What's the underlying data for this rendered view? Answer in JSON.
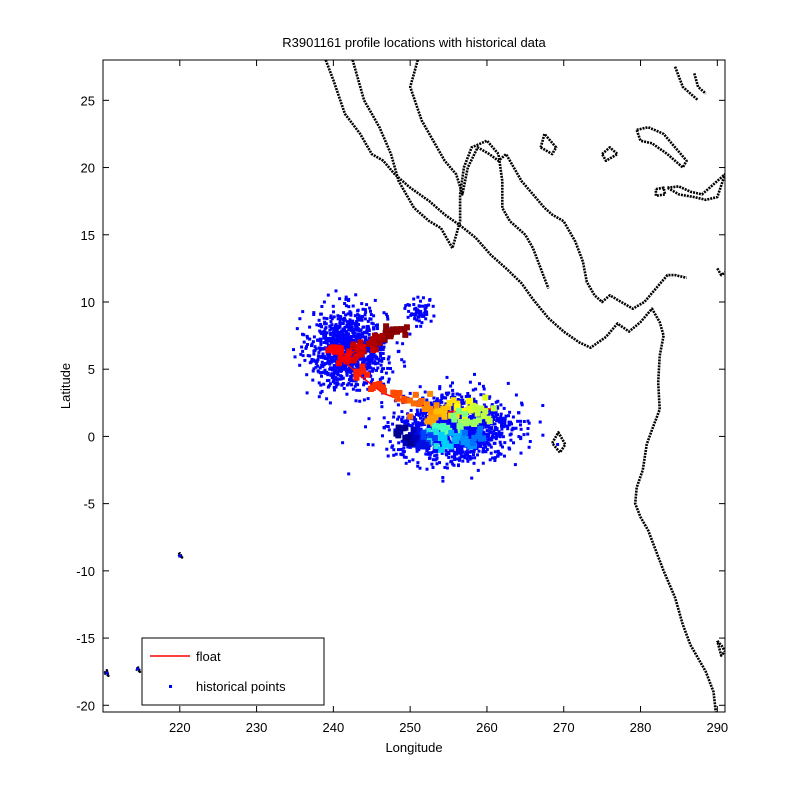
{
  "chart_data": {
    "type": "scatter",
    "title": "R3901161 profile locations with historical data",
    "xlabel": "Longitude",
    "ylabel": "Latitude",
    "xlim": [
      210,
      291
    ],
    "ylim": [
      -20.5,
      28
    ],
    "xticks": [
      220,
      230,
      240,
      250,
      260,
      270,
      280,
      290
    ],
    "yticks": [
      -20,
      -15,
      -10,
      -5,
      0,
      5,
      10,
      15,
      20,
      25
    ],
    "grid": false,
    "legend": {
      "placement": "bottom-left",
      "entries": [
        {
          "name": "float",
          "color": "#ff0000",
          "marker": "line"
        },
        {
          "name": "historical points",
          "color": "#0000ff",
          "marker": "dot"
        }
      ]
    },
    "series": [
      {
        "name": "historical points",
        "color": "#0000ff",
        "clusters": [
          {
            "center": [
              242,
              6.5
            ],
            "spread": [
              4.5,
              2.6
            ],
            "count": 1100
          },
          {
            "center": [
              256,
              0.6
            ],
            "spread": [
              6.5,
              2.2
            ],
            "count": 1500
          },
          {
            "center": [
              251,
              9.3
            ],
            "spread": [
              1.5,
              0.9
            ],
            "count": 60
          }
        ],
        "isolated_points": [
          [
            269.2,
            -0.6
          ],
          [
            220,
            -8.9
          ],
          [
            214.5,
            -17.3
          ],
          [
            210.5,
            -17.6
          ]
        ]
      },
      {
        "name": "float",
        "color": "#ff0000",
        "path": [
          [
            249,
            7.8
          ],
          [
            246,
            7.2
          ],
          [
            243,
            6.4
          ],
          [
            241,
            5.8
          ],
          [
            243.5,
            4.5
          ],
          [
            246.5,
            3.2
          ],
          [
            249.5,
            2.6
          ],
          [
            252,
            2.2
          ],
          [
            255,
            1.8
          ],
          [
            258,
            2.2
          ],
          [
            261,
            2.0
          ]
        ]
      },
      {
        "name": "profile locations",
        "colormap": "jet",
        "points": [
          {
            "x": 248.5,
            "y": 7.9,
            "color": "#8b0000"
          },
          {
            "x": 247.2,
            "y": 7.7,
            "color": "#8b0000"
          },
          {
            "x": 246.0,
            "y": 7.3,
            "color": "#a00000"
          },
          {
            "x": 244.8,
            "y": 7.0,
            "color": "#b00000"
          },
          {
            "x": 243.6,
            "y": 6.6,
            "color": "#c40000"
          },
          {
            "x": 242.5,
            "y": 6.3,
            "color": "#dd0000"
          },
          {
            "x": 241.3,
            "y": 5.9,
            "color": "#f00000"
          },
          {
            "x": 240.6,
            "y": 6.2,
            "color": "#ff0000"
          },
          {
            "x": 243.2,
            "y": 4.7,
            "color": "#ff2000"
          },
          {
            "x": 245.8,
            "y": 3.6,
            "color": "#ff3000"
          },
          {
            "x": 248.6,
            "y": 2.9,
            "color": "#ff4a00"
          },
          {
            "x": 251.0,
            "y": 2.5,
            "color": "#ff6a00"
          },
          {
            "x": 252.5,
            "y": 2.2,
            "color": "#ff8c00"
          },
          {
            "x": 253.0,
            "y": 1.4,
            "color": "#ffa000"
          },
          {
            "x": 254.2,
            "y": 1.8,
            "color": "#ffc000"
          },
          {
            "x": 255.6,
            "y": 2.1,
            "color": "#ffe000"
          },
          {
            "x": 257.0,
            "y": 2.4,
            "color": "#ffff00"
          },
          {
            "x": 258.4,
            "y": 2.2,
            "color": "#e0ff20"
          },
          {
            "x": 259.6,
            "y": 1.9,
            "color": "#c0ff40"
          },
          {
            "x": 258.0,
            "y": 1.2,
            "color": "#a0ff60"
          },
          {
            "x": 256.4,
            "y": 1.0,
            "color": "#80ff80"
          },
          {
            "x": 255.0,
            "y": 0.7,
            "color": "#60ffa0"
          },
          {
            "x": 253.8,
            "y": 0.4,
            "color": "#40ffc0"
          },
          {
            "x": 253.0,
            "y": -0.2,
            "color": "#20e0e0"
          },
          {
            "x": 254.5,
            "y": -0.4,
            "color": "#00d0ff"
          },
          {
            "x": 256.0,
            "y": -0.2,
            "color": "#00b0ff"
          },
          {
            "x": 257.5,
            "y": -0.5,
            "color": "#0090ff"
          },
          {
            "x": 258.8,
            "y": 0.1,
            "color": "#0070ff"
          },
          {
            "x": 252.0,
            "y": 0.0,
            "color": "#0040ff"
          },
          {
            "x": 251.0,
            "y": -0.4,
            "color": "#0010e0"
          },
          {
            "x": 250.0,
            "y": -0.1,
            "color": "#0000c0"
          },
          {
            "x": 249.2,
            "y": 0.3,
            "color": "#000090"
          }
        ]
      }
    ],
    "coastline": {
      "color": "#000000",
      "lines": [
        [
          [
            239.0,
            28.0
          ],
          [
            240.0,
            26.5
          ],
          [
            241.5,
            24.0
          ],
          [
            243.5,
            22.5
          ],
          [
            245.0,
            21.0
          ],
          [
            246.5,
            20.5
          ],
          [
            248.0,
            19.5
          ],
          [
            250.0,
            18.5
          ],
          [
            252.5,
            17.5
          ],
          [
            254.5,
            16.5
          ],
          [
            256.5,
            15.7
          ],
          [
            258.5,
            14.8
          ],
          [
            260.5,
            13.5
          ],
          [
            262.5,
            12.5
          ],
          [
            264.5,
            11.4
          ],
          [
            266.0,
            10.2
          ],
          [
            268.0,
            8.8
          ],
          [
            270.0,
            7.8
          ],
          [
            272.0,
            7.0
          ],
          [
            273.5,
            6.6
          ],
          [
            275.5,
            7.4
          ],
          [
            277.0,
            8.4
          ],
          [
            278.5,
            7.8
          ],
          [
            280.0,
            8.5
          ],
          [
            281.5,
            9.5
          ],
          [
            282.5,
            8.5
          ],
          [
            283.0,
            7.5
          ],
          [
            282.5,
            6.0
          ],
          [
            282.3,
            4.0
          ],
          [
            282.5,
            2.0
          ],
          [
            281.5,
            0.5
          ],
          [
            280.8,
            -0.6
          ],
          [
            280.3,
            -2.5
          ],
          [
            279.5,
            -3.8
          ],
          [
            279.3,
            -5.0
          ],
          [
            280.0,
            -6.0
          ],
          [
            281.0,
            -7.0
          ],
          [
            282.0,
            -8.5
          ],
          [
            283.0,
            -10.0
          ],
          [
            284.5,
            -12.0
          ],
          [
            285.5,
            -14.0
          ],
          [
            286.5,
            -15.5
          ],
          [
            288.5,
            -17.5
          ],
          [
            289.5,
            -19.0
          ],
          [
            289.8,
            -20.5
          ]
        ],
        [
          [
            242.5,
            28.0
          ],
          [
            244.0,
            25.0
          ],
          [
            246.0,
            23.0
          ],
          [
            247.5,
            21.0
          ],
          [
            248.5,
            19.0
          ],
          [
            250.5,
            17.0
          ],
          [
            252.5,
            16.0
          ],
          [
            254.0,
            15.5
          ],
          [
            255.5,
            14.0
          ],
          [
            256.5,
            16.0
          ],
          [
            256.5,
            18.0
          ],
          [
            257.0,
            20.0
          ],
          [
            258.0,
            21.5
          ],
          [
            260.0,
            22.0
          ],
          [
            261.5,
            21.0
          ],
          [
            262.0,
            19.0
          ],
          [
            262.0,
            17.0
          ],
          [
            263.0,
            16.0
          ],
          [
            264.0,
            15.5
          ],
          [
            265.0,
            15.0
          ],
          [
            266.0,
            14.0
          ],
          [
            267.0,
            12.5
          ],
          [
            268.0,
            11.0
          ]
        ],
        [
          [
            251.0,
            28.0
          ],
          [
            250.0,
            26.0
          ],
          [
            251.5,
            23.5
          ],
          [
            253.0,
            22.0
          ],
          [
            254.5,
            20.5
          ],
          [
            256.0,
            19.5
          ],
          [
            256.8,
            18.0
          ],
          [
            257.5,
            20.0
          ],
          [
            258.8,
            21.5
          ],
          [
            260.3,
            21.0
          ],
          [
            261.5,
            20.5
          ],
          [
            262.5,
            21.0
          ],
          [
            263.5,
            20.0
          ],
          [
            264.5,
            19.0
          ],
          [
            266.0,
            18.0
          ],
          [
            267.5,
            17.0
          ],
          [
            268.5,
            16.5
          ],
          [
            270.0,
            16.0
          ],
          [
            271.5,
            14.5
          ],
          [
            272.5,
            13.0
          ],
          [
            273.0,
            11.5
          ],
          [
            274.0,
            10.5
          ],
          [
            275.0,
            10.0
          ],
          [
            276.0,
            10.5
          ],
          [
            277.5,
            10.0
          ],
          [
            279.0,
            9.5
          ],
          [
            280.5,
            10.0
          ],
          [
            282.0,
            11.0
          ],
          [
            283.5,
            12.0
          ],
          [
            284.5,
            12.0
          ],
          [
            286.0,
            11.8
          ]
        ],
        [
          [
            284.5,
            27.5
          ],
          [
            285.5,
            26.0
          ],
          [
            286.5,
            25.5
          ],
          [
            287.5,
            25.0
          ]
        ],
        [
          [
            287.0,
            27.0
          ],
          [
            287.5,
            26.0
          ],
          [
            288.5,
            25.5
          ]
        ],
        [
          [
            279.5,
            22.8
          ],
          [
            281.0,
            23.0
          ],
          [
            283.0,
            22.5
          ],
          [
            284.5,
            21.5
          ],
          [
            286.0,
            20.5
          ],
          [
            285.5,
            20.0
          ],
          [
            283.5,
            21.0
          ],
          [
            281.5,
            21.8
          ],
          [
            280.0,
            22.0
          ],
          [
            279.5,
            22.8
          ]
        ],
        [
          [
            283.5,
            18.5
          ],
          [
            285.0,
            18.6
          ],
          [
            286.5,
            18.2
          ],
          [
            288.0,
            18.0
          ],
          [
            290.0,
            19.0
          ],
          [
            291.0,
            19.5
          ],
          [
            290.0,
            17.8
          ],
          [
            288.5,
            17.6
          ],
          [
            287.0,
            17.8
          ],
          [
            285.0,
            18.0
          ],
          [
            283.5,
            18.5
          ]
        ],
        [
          [
            282.0,
            18.4
          ],
          [
            283.0,
            18.5
          ],
          [
            283.2,
            18.0
          ],
          [
            282.0,
            17.9
          ],
          [
            282.0,
            18.4
          ]
        ],
        [
          [
            275.0,
            21.0
          ],
          [
            276.0,
            21.5
          ],
          [
            277.0,
            21.0
          ],
          [
            275.5,
            20.5
          ],
          [
            275.0,
            21.0
          ]
        ],
        [
          [
            267.0,
            21.5
          ],
          [
            268.5,
            21.0
          ],
          [
            269.0,
            21.5
          ],
          [
            267.5,
            22.5
          ],
          [
            267.0,
            21.5
          ]
        ],
        [
          [
            268.5,
            -0.5
          ],
          [
            269.3,
            0.3
          ],
          [
            270.2,
            -0.6
          ],
          [
            269.5,
            -1.2
          ],
          [
            268.5,
            -0.5
          ]
        ],
        [
          [
            219.8,
            -8.8
          ],
          [
            220.3,
            -9.0
          ],
          [
            220.0,
            -8.7
          ],
          [
            219.8,
            -8.8
          ]
        ],
        [
          [
            214.3,
            -17.3
          ],
          [
            214.8,
            -17.5
          ],
          [
            214.6,
            -17.2
          ],
          [
            214.3,
            -17.3
          ]
        ],
        [
          [
            210.2,
            -17.6
          ],
          [
            210.7,
            -17.8
          ],
          [
            210.5,
            -17.4
          ],
          [
            210.2,
            -17.6
          ]
        ],
        [
          [
            290.0,
            -15.2
          ],
          [
            290.6,
            -15.6
          ],
          [
            291.0,
            -16.0
          ],
          [
            290.5,
            -16.3
          ],
          [
            290.0,
            -15.2
          ]
        ],
        [
          [
            290.0,
            12.5
          ],
          [
            290.5,
            12.0
          ],
          [
            291.0,
            12.2
          ]
        ]
      ]
    }
  }
}
